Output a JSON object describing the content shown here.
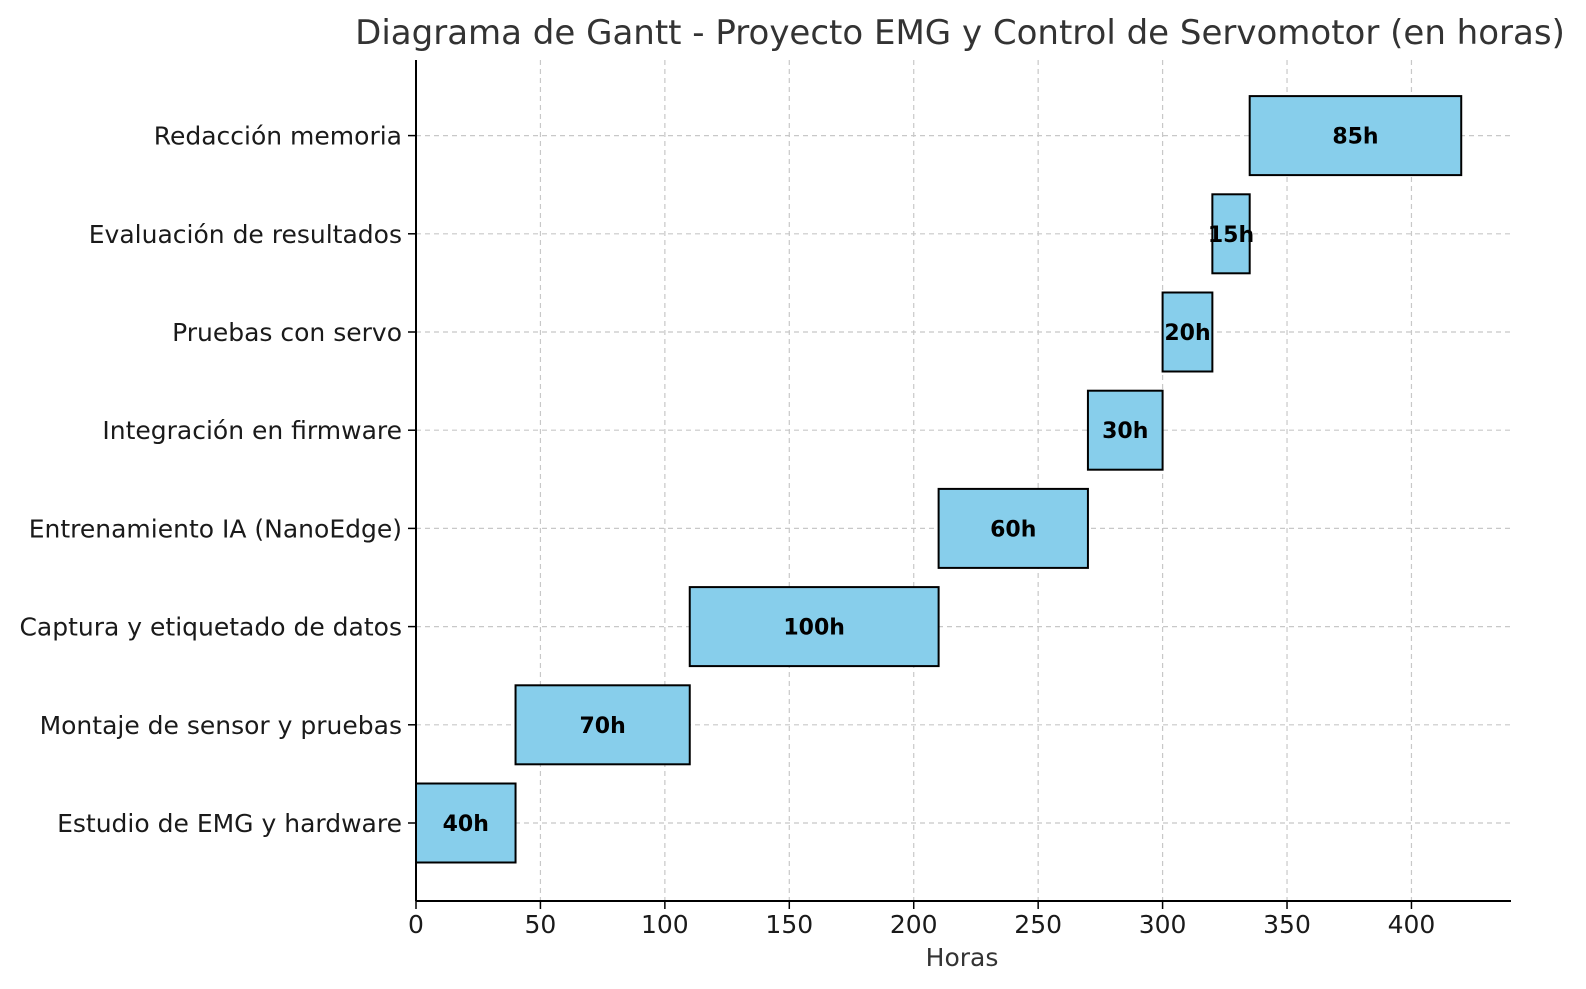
{
  "chart_data": {
    "type": "gantt",
    "title": "Diagrama de Gantt - Proyecto EMG y Control de Servomotor (en horas)",
    "xlabel": "Horas",
    "ylabel": "",
    "xlim": [
      0,
      440
    ],
    "x_ticks": [
      0,
      50,
      100,
      150,
      200,
      250,
      300,
      350,
      400
    ],
    "grid": true,
    "bar_color": "#87CEEB",
    "edge_color": "#000000",
    "tasks": [
      {
        "name": "Estudio de EMG y hardware",
        "start": 0,
        "duration": 40,
        "label": "40h"
      },
      {
        "name": "Montaje de sensor y pruebas",
        "start": 40,
        "duration": 70,
        "label": "70h"
      },
      {
        "name": "Captura y etiquetado de datos",
        "start": 110,
        "duration": 100,
        "label": "100h"
      },
      {
        "name": "Entrenamiento IA (NanoEdge)",
        "start": 210,
        "duration": 60,
        "label": "60h"
      },
      {
        "name": "Integración en firmware",
        "start": 270,
        "duration": 30,
        "label": "30h"
      },
      {
        "name": "Pruebas con servo",
        "start": 300,
        "duration": 20,
        "label": "20h"
      },
      {
        "name": "Evaluación de resultados",
        "start": 320,
        "duration": 15,
        "label": "15h"
      },
      {
        "name": "Redacción memoria",
        "start": 335,
        "duration": 85,
        "label": "85h"
      }
    ]
  }
}
